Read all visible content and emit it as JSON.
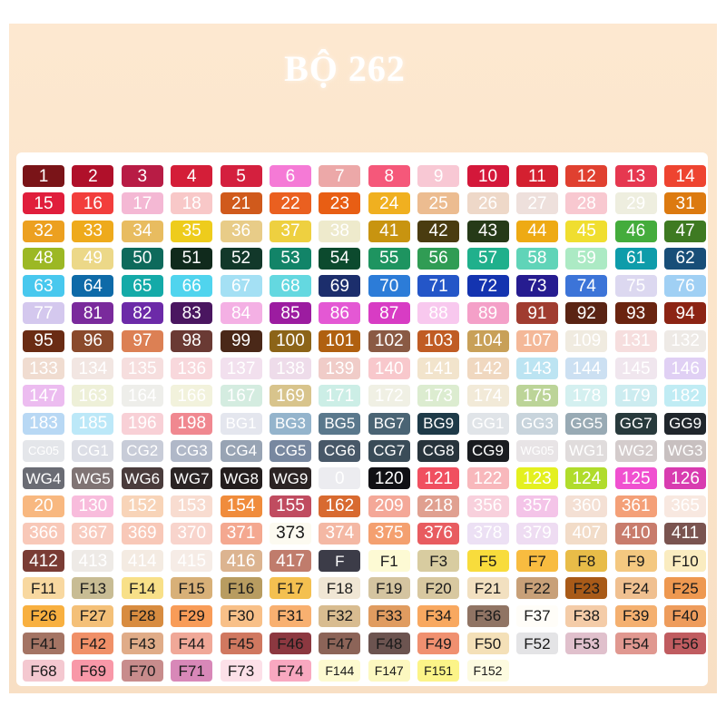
{
  "title": "BỘ 262",
  "colors": {
    "background": "#fbe5cb",
    "card": "#ffffff",
    "title": "#ffffff",
    "dark_label": "#1a1a1a",
    "light_label": "#ffffff"
  },
  "swatches": [
    [
      "1",
      "#7a1418"
    ],
    [
      "2",
      "#b0102a"
    ],
    [
      "3",
      "#b81c45"
    ],
    [
      "4",
      "#d41e38"
    ],
    [
      "5",
      "#d4203e"
    ],
    [
      "6",
      "#f57ad6"
    ],
    [
      "7",
      "#eca8a8"
    ],
    [
      "8",
      "#f5587a"
    ],
    [
      "9",
      "#f8c8d4"
    ],
    [
      "10",
      "#d4183a"
    ],
    [
      "11",
      "#d42030"
    ],
    [
      "12",
      "#e04030"
    ],
    [
      "13",
      "#e63850"
    ],
    [
      "14",
      "#ee4430"
    ],
    [
      "15",
      "#e01e3c"
    ],
    [
      "16",
      "#f23e3c"
    ],
    [
      "17",
      "#f4b8d4"
    ],
    [
      "18",
      "#f8c8c8"
    ],
    [
      "21",
      "#d05a1c"
    ],
    [
      "22",
      "#ea6020"
    ],
    [
      "23",
      "#e85e14"
    ],
    [
      "24",
      "#f0b020"
    ],
    [
      "25",
      "#ecbc90"
    ],
    [
      "26",
      "#eed8c8"
    ],
    [
      "27",
      "#eee0dc"
    ],
    [
      "28",
      "#f8c8d0"
    ],
    [
      "29",
      "#eeeedf"
    ],
    [
      "31",
      "#dc7a10"
    ],
    [
      "32",
      "#eca020"
    ],
    [
      "33",
      "#eeaa1c"
    ],
    [
      "34",
      "#e8bc60"
    ],
    [
      "35",
      "#eecc1c"
    ],
    [
      "36",
      "#e8cc88"
    ],
    [
      "37",
      "#eed040"
    ],
    [
      "38",
      "#eeeacc"
    ],
    [
      "41",
      "#c89410"
    ],
    [
      "42",
      "#4a3c10"
    ],
    [
      "43",
      "#263a18"
    ],
    [
      "44",
      "#eeaa14"
    ],
    [
      "45",
      "#f0de30"
    ],
    [
      "46",
      "#44ac3c"
    ],
    [
      "47",
      "#3e7a22"
    ],
    [
      "48",
      "#9cb824"
    ],
    [
      "49",
      "#ecd888"
    ],
    [
      "50",
      "#0e6a5c"
    ],
    [
      "51",
      "#102a1c"
    ],
    [
      "52",
      "#12382a"
    ],
    [
      "53",
      "#128468"
    ],
    [
      "54",
      "#0c4a2e"
    ],
    [
      "55",
      "#1e9460"
    ],
    [
      "56",
      "#309c54"
    ],
    [
      "57",
      "#20b08c"
    ],
    [
      "58",
      "#60d4b8"
    ],
    [
      "59",
      "#aceac4"
    ],
    [
      "61",
      "#0e9caa"
    ],
    [
      "62",
      "#184e78"
    ],
    [
      "63",
      "#48c8ee"
    ],
    [
      "64",
      "#0e6aa8"
    ],
    [
      "65",
      "#14aaa8"
    ],
    [
      "66",
      "#50d4ee"
    ],
    [
      "67",
      "#a4e0f4"
    ],
    [
      "68",
      "#64d8e0"
    ],
    [
      "69",
      "#1c2e6c"
    ],
    [
      "70",
      "#2c7cd8"
    ],
    [
      "71",
      "#2456c8"
    ],
    [
      "72",
      "#1434b0"
    ],
    [
      "73",
      "#261c90"
    ],
    [
      "74",
      "#3c74d8"
    ],
    [
      "75",
      "#dcd8f0"
    ],
    [
      "76",
      "#a0d0f4"
    ],
    [
      "77",
      "#d4c8ee"
    ],
    [
      "81",
      "#7a2a9c"
    ],
    [
      "82",
      "#6c2aa8"
    ],
    [
      "83",
      "#4a1660"
    ],
    [
      "84",
      "#f4b0e4"
    ],
    [
      "85",
      "#9c1ca0"
    ],
    [
      "86",
      "#e458d4"
    ],
    [
      "87",
      "#d83cc4"
    ],
    [
      "88",
      "#f8c8ee"
    ],
    [
      "89",
      "#f4a0c8"
    ],
    [
      "91",
      "#a03c30"
    ],
    [
      "92",
      "#5a2414"
    ],
    [
      "93",
      "#6a2410"
    ],
    [
      "94",
      "#8c2414"
    ],
    [
      "95",
      "#6a2c14"
    ],
    [
      "96",
      "#8a4a2c"
    ],
    [
      "97",
      "#dc8054"
    ],
    [
      "98",
      "#6a3a34"
    ],
    [
      "99",
      "#4a2818"
    ],
    [
      "100",
      "#8c6418"
    ],
    [
      "101",
      "#b06010"
    ],
    [
      "102",
      "#8a5a44"
    ],
    [
      "103",
      "#c05c24"
    ],
    [
      "104",
      "#c8a058"
    ],
    [
      "107",
      "#f4b898"
    ],
    [
      "109",
      "#f0ebe0"
    ],
    [
      "131",
      "#f6dede"
    ],
    [
      "132",
      "#eeeae6"
    ],
    [
      "133",
      "#f0dcd0"
    ],
    [
      "134",
      "#f2e6e2"
    ],
    [
      "135",
      "#f6dede"
    ],
    [
      "136",
      "#f8d8dc"
    ],
    [
      "137",
      "#f2e0ee"
    ],
    [
      "138",
      "#eedcea"
    ],
    [
      "139",
      "#f0ccc8"
    ],
    [
      "140",
      "#f8c8cc"
    ],
    [
      "141",
      "#f2e4cc"
    ],
    [
      "142",
      "#f0d8c0"
    ],
    [
      "143",
      "#bce4f2"
    ],
    [
      "144",
      "#cce0f2"
    ],
    [
      "145",
      "#f0e6ee"
    ],
    [
      "146",
      "#e0d0f4"
    ],
    [
      "147",
      "#ecbcf0"
    ],
    [
      "163",
      "#eef0d8"
    ],
    [
      "164",
      "#eeeeea"
    ],
    [
      "166",
      "#f2f2dc"
    ],
    [
      "167",
      "#d4ece0"
    ],
    [
      "169",
      "#d8c48c"
    ],
    [
      "171",
      "#cceee6"
    ],
    [
      "172",
      "#f0f0e4"
    ],
    [
      "173",
      "#dcecd0"
    ],
    [
      "174",
      "#f2ead8"
    ],
    [
      "175",
      "#bcd498"
    ],
    [
      "178",
      "#d4f0f0"
    ],
    [
      "179",
      "#ccecf0"
    ],
    [
      "182",
      "#c0ecf4"
    ],
    [
      "183",
      "#b8d8f4"
    ],
    [
      "185",
      "#bce8f8"
    ],
    [
      "196",
      "#f8d0d6"
    ],
    [
      "198",
      "#f08890"
    ],
    [
      "BG1",
      "#e4e6ee"
    ],
    [
      "BG3",
      "#94b4cc"
    ],
    [
      "BG5",
      "#5a788c"
    ],
    [
      "BG7",
      "#4a6474"
    ],
    [
      "BG9",
      "#1e3a48"
    ],
    [
      "GG1",
      "#e0e4e8"
    ],
    [
      "GG3",
      "#c8d4dc"
    ],
    [
      "GG5",
      "#98aab4"
    ],
    [
      "GG7",
      "#283a3c"
    ],
    [
      "GG9",
      "#20262c"
    ],
    [
      "CG05",
      "#e4e6ea"
    ],
    [
      "CG1",
      "#dcdee6"
    ],
    [
      "CG2",
      "#c8ccd8"
    ],
    [
      "CG3",
      "#b0b8c8"
    ],
    [
      "CG4",
      "#98a4b4"
    ],
    [
      "CG5",
      "#7888a0"
    ],
    [
      "CG6",
      "#485868"
    ],
    [
      "CG7",
      "#3a4c58"
    ],
    [
      "CG8",
      "#28343c"
    ],
    [
      "CG9",
      "#1a1c20"
    ],
    [
      "WG05",
      "#e8e4e6"
    ],
    [
      "WG1",
      "#e0dcdc"
    ],
    [
      "WG2",
      "#d4cccc"
    ],
    [
      "WG3",
      "#c8c0c0"
    ],
    [
      "WG4",
      "#6a6c74"
    ],
    [
      "WG5",
      "#807474"
    ],
    [
      "WG6",
      "#4a3c3c"
    ],
    [
      "WG7",
      "#2a2424"
    ],
    [
      "WG8",
      "#241e1e"
    ],
    [
      "WG9",
      "#2c2424"
    ],
    [
      "0",
      "#ececf0"
    ],
    [
      "120",
      "#101014"
    ],
    [
      "121",
      "#f05060"
    ],
    [
      "122",
      "#f8b8bc"
    ],
    [
      "123",
      "#e4f020"
    ],
    [
      "124",
      "#b0dc2c"
    ],
    [
      "125",
      "#f050d0"
    ],
    [
      "126",
      "#d83cb0"
    ],
    [
      "20",
      "#f8b880"
    ],
    [
      "130",
      "#f8bcdc"
    ],
    [
      "152",
      "#f8d4b8"
    ],
    [
      "153",
      "#f8dcd0"
    ],
    [
      "154",
      "#f08c3c"
    ],
    [
      "155",
      "#c04c60"
    ],
    [
      "162",
      "#d86a30"
    ],
    [
      "209",
      "#f4a898"
    ],
    [
      "218",
      "#e0a090"
    ],
    [
      "356",
      "#f8d0dc"
    ],
    [
      "357",
      "#f4c4e8"
    ],
    [
      "360",
      "#f4e0d4"
    ],
    [
      "361",
      "#f4a078"
    ],
    [
      "365",
      "#f8e8e0"
    ],
    [
      "366",
      "#f8c8b8"
    ],
    [
      "367",
      "#f8ccc0"
    ],
    [
      "369",
      "#f8c8b8"
    ],
    [
      "370",
      "#f8d4cc"
    ],
    [
      "371",
      "#f4a890"
    ],
    [
      "373",
      "#fcfaf0"
    ],
    [
      "374",
      "#f4b8a4"
    ],
    [
      "375",
      "#f4a070"
    ],
    [
      "376",
      "#e85c60"
    ],
    [
      "378",
      "#ece0f4"
    ],
    [
      "379",
      "#eedcf2"
    ],
    [
      "407",
      "#f2dcc8"
    ],
    [
      "410",
      "#c87c6c"
    ],
    [
      "411",
      "#7a5450"
    ],
    [
      "412",
      "#7a3c34"
    ],
    [
      "413",
      "#eeeae6"
    ],
    [
      "414",
      "#f4ebe2"
    ],
    [
      "415",
      "#f6ece6"
    ],
    [
      "416",
      "#dcb490"
    ],
    [
      "417",
      "#c07c6c"
    ],
    [
      "F",
      "#3c3c48"
    ],
    [
      "F1",
      "#fdfad4"
    ],
    [
      "F3",
      "#d8cca0"
    ],
    [
      "F5",
      "#f8dc3c"
    ],
    [
      "F7",
      "#f8bc40"
    ],
    [
      "F8",
      "#e8bc48"
    ],
    [
      "F9",
      "#f4c880"
    ],
    [
      "F10",
      "#faecc0"
    ],
    [
      "F11",
      "#f8d8a0"
    ],
    [
      "F13",
      "#c8bc94"
    ],
    [
      "F14",
      "#f8e088"
    ],
    [
      "F15",
      "#d8b078"
    ],
    [
      "F16",
      "#b89c60"
    ],
    [
      "F17",
      "#f4c050"
    ],
    [
      "F18",
      "#f0e6d4"
    ],
    [
      "F19",
      "#d4c4a0"
    ],
    [
      "F20",
      "#d8c8a0"
    ],
    [
      "F21",
      "#f2e0c0"
    ],
    [
      "F22",
      "#c8a078"
    ],
    [
      "F23",
      "#a85a18"
    ],
    [
      "F24",
      "#f0c090"
    ],
    [
      "F25",
      "#ee9850"
    ],
    [
      "F26",
      "#f8b040"
    ],
    [
      "F27",
      "#f4c078"
    ],
    [
      "F28",
      "#d88c40"
    ],
    [
      "F29",
      "#f89c58"
    ],
    [
      "F30",
      "#f8c088"
    ],
    [
      "F31",
      "#f8b070"
    ],
    [
      "F32",
      "#d8bc90"
    ],
    [
      "F33",
      "#e09c60"
    ],
    [
      "F34",
      "#f8a860"
    ],
    [
      "F36",
      "#907464"
    ],
    [
      "F37",
      "#fffdf8"
    ],
    [
      "F38",
      "#f4cca8"
    ],
    [
      "F39",
      "#f4b070"
    ],
    [
      "F40",
      "#ee9c5c"
    ],
    [
      "F41",
      "#a47464"
    ],
    [
      "F42",
      "#f09068"
    ],
    [
      "F43",
      "#e0ac88"
    ],
    [
      "F44",
      "#f0a898"
    ],
    [
      "F45",
      "#d07860"
    ],
    [
      "F46",
      "#8c3840"
    ],
    [
      "F47",
      "#8c6458"
    ],
    [
      "F48",
      "#6c5450"
    ],
    [
      "F49",
      "#f09070"
    ],
    [
      "F50",
      "#f4e0b8"
    ],
    [
      "F52",
      "#e4e4e6"
    ],
    [
      "F53",
      "#e0c0cc"
    ],
    [
      "F54",
      "#e09890"
    ],
    [
      "F56",
      "#c05c60"
    ],
    [
      "F68",
      "#f4c8d0"
    ],
    [
      "F69",
      "#f898a8"
    ],
    [
      "F70",
      "#c88c8c"
    ],
    [
      "F71",
      "#d888b8"
    ],
    [
      "F73",
      "#fce0e8"
    ],
    [
      "F74",
      "#f8a8c0"
    ],
    [
      "F144",
      "#fdfad0"
    ],
    [
      "F147",
      "#fcf8c0"
    ],
    [
      "F151",
      "#fcf488"
    ],
    [
      "F152",
      "#fdfbe0"
    ]
  ]
}
